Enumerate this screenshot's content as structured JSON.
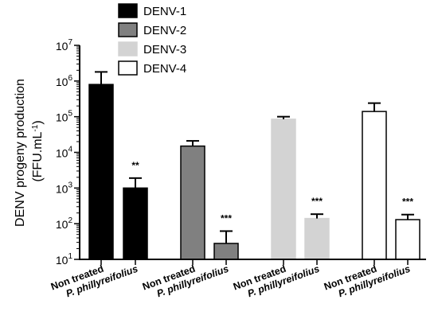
{
  "chart_data": {
    "type": "bar",
    "yscale": "log",
    "ylabel_line1": "DENV progeny production",
    "ylabel_line2": "(FFU.mL",
    "ylabel_superscript": "-1",
    "ylabel_close": ")",
    "ylim": [
      10,
      10000000
    ],
    "yticks": [
      {
        "base": "10",
        "exp": "1"
      },
      {
        "base": "10",
        "exp": "2"
      },
      {
        "base": "10",
        "exp": "3"
      },
      {
        "base": "10",
        "exp": "4"
      },
      {
        "base": "10",
        "exp": "5"
      },
      {
        "base": "10",
        "exp": "6"
      },
      {
        "base": "10",
        "exp": "7"
      }
    ],
    "legend_placement": "top",
    "series": [
      {
        "name": "DENV-1",
        "fill": "#000000",
        "stroke": "#000000",
        "bars": [
          {
            "category": "Non treated",
            "value": 800000,
            "error": 1800000,
            "sig": ""
          },
          {
            "category": "P. phillyreifolius",
            "value": 1000,
            "error": 1900,
            "sig": "**"
          }
        ]
      },
      {
        "name": "DENV-2",
        "fill": "#808080",
        "stroke": "#000000",
        "bars": [
          {
            "category": "Non treated",
            "value": 15000,
            "error": 21000,
            "sig": ""
          },
          {
            "category": "P. phillyreifolius",
            "value": 28,
            "error": 62,
            "sig": "***"
          }
        ]
      },
      {
        "name": "DENV-3",
        "fill": "#d3d3d3",
        "stroke": "#d3d3d3",
        "bars": [
          {
            "category": "Non treated",
            "value": 85000,
            "error": 100000,
            "sig": ""
          },
          {
            "category": "P. phillyreifolius",
            "value": 140,
            "error": 185,
            "sig": "***"
          }
        ]
      },
      {
        "name": "DENV-4",
        "fill": "#ffffff",
        "stroke": "#000000",
        "bars": [
          {
            "category": "Non treated",
            "value": 140000,
            "error": 240000,
            "sig": ""
          },
          {
            "category": "P. phillyreifolius",
            "value": 130,
            "error": 180,
            "sig": "***"
          }
        ]
      }
    ]
  }
}
